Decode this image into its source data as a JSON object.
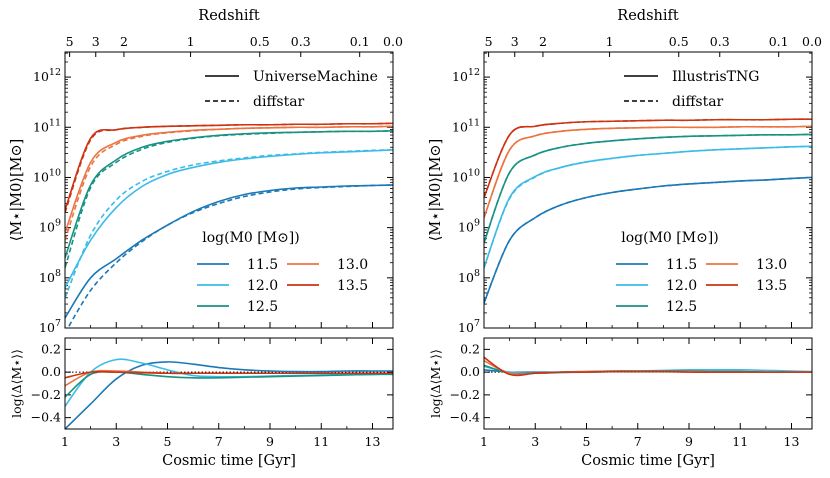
{
  "chart_data": [
    {
      "type": "line",
      "panel": "left",
      "title": "Redshift",
      "xlabel": "Cosmic time [Gyr]",
      "ylabel_main": "⟨M⋆|M0⟩[M⊙]",
      "ylabel_resid": "log⟨Δ⟨M⋆⟩⟩",
      "xlim": [
        1,
        13.8
      ],
      "ylim_main_log10": [
        7,
        12.5
      ],
      "ylim_resid": [
        -0.5,
        0.3
      ],
      "x_ticks": [
        "1",
        "3",
        "5",
        "7",
        "9",
        "11",
        "13"
      ],
      "y_ticks_main": [
        "10^7",
        "10^8",
        "10^9",
        "10^10",
        "10^11",
        "10^12"
      ],
      "y_ticks_resid": [
        "0.2",
        "0.0",
        "−0.2",
        "−0.4"
      ],
      "top_ticks": [
        {
          "label": "5",
          "t": 1.18
        },
        {
          "label": "3",
          "t": 2.2
        },
        {
          "label": "2",
          "t": 3.3
        },
        {
          "label": "1",
          "t": 5.9
        },
        {
          "label": "0.5",
          "t": 8.6
        },
        {
          "label": "0.3",
          "t": 10.2
        },
        {
          "label": "0.1",
          "t": 12.5
        },
        {
          "label": "0.0",
          "t": 13.8
        }
      ],
      "legend_lines": [
        {
          "label": "UniverseMachine",
          "style": "solid"
        },
        {
          "label": "diffstar",
          "style": "dashed"
        }
      ],
      "legend_title": "log(M0 [M⊙])",
      "series": [
        {
          "name": "11.5",
          "color": "#1b79b6",
          "x": [
            1,
            2,
            3,
            4,
            5,
            6,
            7,
            8,
            9,
            10,
            11,
            12,
            13,
            13.8
          ],
          "model": [
            7.2,
            8.0,
            8.38,
            8.75,
            9.05,
            9.32,
            9.52,
            9.66,
            9.74,
            9.79,
            9.81,
            9.83,
            9.84,
            9.85
          ],
          "fit": [
            6.9,
            7.75,
            8.3,
            8.72,
            9.05,
            9.3,
            9.48,
            9.62,
            9.71,
            9.77,
            9.8,
            9.82,
            9.84,
            9.85
          ],
          "resid": [
            -0.5,
            -0.28,
            -0.06,
            0.06,
            0.09,
            0.07,
            0.04,
            0.02,
            0.01,
            0.005,
            0.005,
            0.01,
            0.01,
            0.01
          ]
        },
        {
          "name": "12.0",
          "color": "#3bbbe8",
          "x": [
            1,
            2,
            3,
            4,
            5,
            6,
            7,
            8,
            9,
            10,
            11,
            12,
            13,
            13.8
          ],
          "model": [
            7.8,
            8.75,
            9.4,
            9.82,
            10.06,
            10.2,
            10.3,
            10.37,
            10.42,
            10.46,
            10.49,
            10.51,
            10.53,
            10.55
          ],
          "fit": [
            7.6,
            8.85,
            9.55,
            9.92,
            10.12,
            10.25,
            10.33,
            10.39,
            10.44,
            10.47,
            10.5,
            10.52,
            10.54,
            10.55
          ],
          "resid": [
            -0.3,
            0.0,
            0.11,
            0.08,
            0.02,
            -0.03,
            -0.04,
            -0.04,
            -0.035,
            -0.03,
            -0.025,
            -0.02,
            -0.02,
            -0.015
          ]
        },
        {
          "name": "12.5",
          "color": "#189383",
          "x": [
            1,
            2,
            3,
            4,
            5,
            6,
            7,
            8,
            9,
            10,
            11,
            12,
            13,
            13.8
          ],
          "model": [
            8.4,
            9.85,
            10.35,
            10.6,
            10.72,
            10.79,
            10.84,
            10.87,
            10.89,
            10.9,
            10.91,
            10.92,
            10.92,
            10.93
          ],
          "fit": [
            8.2,
            9.8,
            10.3,
            10.56,
            10.7,
            10.78,
            10.83,
            10.86,
            10.88,
            10.9,
            10.91,
            10.92,
            10.92,
            10.93
          ],
          "resid": [
            -0.22,
            -0.02,
            0.0,
            -0.02,
            -0.04,
            -0.05,
            -0.05,
            -0.045,
            -0.04,
            -0.035,
            -0.03,
            -0.025,
            -0.02,
            -0.02
          ]
        },
        {
          "name": "13.0",
          "color": "#ec7442",
          "x": [
            1,
            2,
            3,
            4,
            5,
            6,
            7,
            8,
            9,
            10,
            11,
            12,
            13,
            13.8
          ],
          "model": [
            8.9,
            10.3,
            10.7,
            10.84,
            10.9,
            10.94,
            10.96,
            10.98,
            10.99,
            11.0,
            11.0,
            11.01,
            11.01,
            11.02
          ],
          "fit": [
            8.75,
            10.22,
            10.66,
            10.82,
            10.89,
            10.93,
            10.96,
            10.98,
            10.99,
            11.0,
            11.0,
            11.01,
            11.01,
            11.02
          ],
          "resid": [
            -0.12,
            0.0,
            0.01,
            0.0,
            -0.01,
            -0.01,
            -0.01,
            -0.01,
            -0.01,
            -0.01,
            -0.01,
            -0.01,
            -0.01,
            -0.01
          ]
        },
        {
          "name": "13.5",
          "color": "#cc3311",
          "x": [
            1,
            2,
            3,
            4,
            5,
            6,
            7,
            8,
            9,
            10,
            11,
            12,
            13,
            13.8
          ],
          "model": [
            9.35,
            10.78,
            10.95,
            11.0,
            11.02,
            11.03,
            11.04,
            11.05,
            11.05,
            11.06,
            11.06,
            11.07,
            11.07,
            11.08
          ],
          "fit": [
            9.3,
            10.75,
            10.95,
            11.0,
            11.02,
            11.03,
            11.04,
            11.05,
            11.05,
            11.06,
            11.06,
            11.07,
            11.07,
            11.08
          ],
          "resid": [
            -0.05,
            0.0,
            0.0,
            -0.005,
            -0.01,
            -0.01,
            -0.01,
            -0.01,
            -0.01,
            -0.01,
            -0.01,
            -0.01,
            -0.01,
            -0.01
          ]
        }
      ]
    },
    {
      "type": "line",
      "panel": "right",
      "title": "Redshift",
      "xlabel": "Cosmic time [Gyr]",
      "ylabel_main": "⟨M⋆|M0⟩[M⊙]",
      "ylabel_resid": "log⟨Δ⟨M⋆⟩⟩",
      "xlim": [
        1,
        13.8
      ],
      "ylim_main_log10": [
        7,
        12.5
      ],
      "ylim_resid": [
        -0.5,
        0.3
      ],
      "x_ticks": [
        "1",
        "3",
        "5",
        "7",
        "9",
        "11",
        "13"
      ],
      "y_ticks_main": [
        "10^7",
        "10^8",
        "10^9",
        "10^10",
        "10^11",
        "10^12"
      ],
      "y_ticks_resid": [
        "0.2",
        "0.0",
        "−0.2",
        "−0.4"
      ],
      "top_ticks": [
        {
          "label": "5",
          "t": 1.18
        },
        {
          "label": "3",
          "t": 2.2
        },
        {
          "label": "2",
          "t": 3.3
        },
        {
          "label": "1",
          "t": 5.9
        },
        {
          "label": "0.5",
          "t": 8.6
        },
        {
          "label": "0.3",
          "t": 10.2
        },
        {
          "label": "0.1",
          "t": 12.5
        },
        {
          "label": "0.0",
          "t": 13.8
        }
      ],
      "legend_lines": [
        {
          "label": "IllustrisTNG",
          "style": "solid"
        },
        {
          "label": "diffstar",
          "style": "dashed"
        }
      ],
      "legend_title": "log(M0 [M⊙])",
      "series": [
        {
          "name": "11.5",
          "color": "#1b79b6",
          "x": [
            1,
            2,
            3,
            4,
            5,
            6,
            7,
            8,
            9,
            10,
            11,
            12,
            13,
            13.8
          ],
          "model": [
            7.5,
            8.75,
            9.2,
            9.45,
            9.6,
            9.7,
            9.77,
            9.83,
            9.87,
            9.9,
            9.93,
            9.95,
            9.98,
            10.0
          ],
          "fit": [
            7.5,
            8.75,
            9.2,
            9.45,
            9.6,
            9.7,
            9.77,
            9.83,
            9.87,
            9.9,
            9.93,
            9.95,
            9.98,
            10.0
          ],
          "resid": [
            0.02,
            0.0,
            0.0,
            0.0,
            0.0,
            0.005,
            0.005,
            0.005,
            0.005,
            0.005,
            0.005,
            0.0,
            0.0,
            0.0
          ]
        },
        {
          "name": "12.0",
          "color": "#3bbbe8",
          "x": [
            1,
            2,
            3,
            4,
            5,
            6,
            7,
            8,
            9,
            10,
            11,
            12,
            13,
            13.8
          ],
          "model": [
            8.2,
            9.6,
            10.02,
            10.2,
            10.31,
            10.38,
            10.44,
            10.48,
            10.52,
            10.55,
            10.57,
            10.59,
            10.61,
            10.62
          ],
          "fit": [
            8.2,
            9.58,
            10.01,
            10.2,
            10.31,
            10.38,
            10.44,
            10.48,
            10.52,
            10.55,
            10.57,
            10.59,
            10.61,
            10.62
          ],
          "resid": [
            0.05,
            0.0,
            -0.01,
            -0.005,
            0.0,
            0.005,
            0.01,
            0.015,
            0.02,
            0.02,
            0.02,
            0.015,
            0.01,
            0.005
          ]
        },
        {
          "name": "12.5",
          "color": "#189383",
          "x": [
            1,
            2,
            3,
            4,
            5,
            6,
            7,
            8,
            9,
            10,
            11,
            12,
            13,
            13.8
          ],
          "model": [
            8.7,
            10.1,
            10.45,
            10.6,
            10.68,
            10.73,
            10.77,
            10.8,
            10.82,
            10.83,
            10.84,
            10.85,
            10.85,
            10.86
          ],
          "fit": [
            8.7,
            10.1,
            10.45,
            10.6,
            10.68,
            10.73,
            10.77,
            10.8,
            10.82,
            10.83,
            10.84,
            10.85,
            10.85,
            10.86
          ],
          "resid": [
            0.06,
            -0.01,
            -0.01,
            0.0,
            0.005,
            0.01,
            0.01,
            0.01,
            0.01,
            0.005,
            0.005,
            0.0,
            0.0,
            0.0
          ]
        },
        {
          "name": "13.0",
          "color": "#ec7442",
          "x": [
            1,
            2,
            3,
            4,
            5,
            6,
            7,
            8,
            9,
            10,
            11,
            12,
            13,
            13.8
          ],
          "model": [
            9.2,
            10.55,
            10.83,
            10.92,
            10.96,
            10.98,
            10.99,
            11.0,
            11.0,
            11.0,
            11.01,
            11.01,
            11.01,
            11.02
          ],
          "fit": [
            9.2,
            10.55,
            10.83,
            10.92,
            10.96,
            10.98,
            10.99,
            11.0,
            11.0,
            11.0,
            11.01,
            11.01,
            11.01,
            11.02
          ],
          "resid": [
            0.1,
            -0.01,
            -0.01,
            0.0,
            0.005,
            0.005,
            0.005,
            0.005,
            0.005,
            0.0,
            0.0,
            0.0,
            0.0,
            0.0
          ]
        },
        {
          "name": "13.5",
          "color": "#cc3311",
          "x": [
            1,
            2,
            3,
            4,
            5,
            6,
            7,
            8,
            9,
            10,
            11,
            12,
            13,
            13.8
          ],
          "model": [
            9.6,
            10.85,
            11.02,
            11.08,
            11.11,
            11.12,
            11.13,
            11.14,
            11.14,
            11.15,
            11.15,
            11.15,
            11.16,
            11.16
          ],
          "fit": [
            9.6,
            10.85,
            11.02,
            11.08,
            11.11,
            11.12,
            11.13,
            11.14,
            11.14,
            11.15,
            11.15,
            11.15,
            11.16,
            11.16
          ],
          "resid": [
            0.13,
            -0.02,
            -0.01,
            0.0,
            0.0,
            0.005,
            0.005,
            0.005,
            0.0,
            0.0,
            0.0,
            0.0,
            0.0,
            0.0
          ]
        }
      ]
    }
  ]
}
